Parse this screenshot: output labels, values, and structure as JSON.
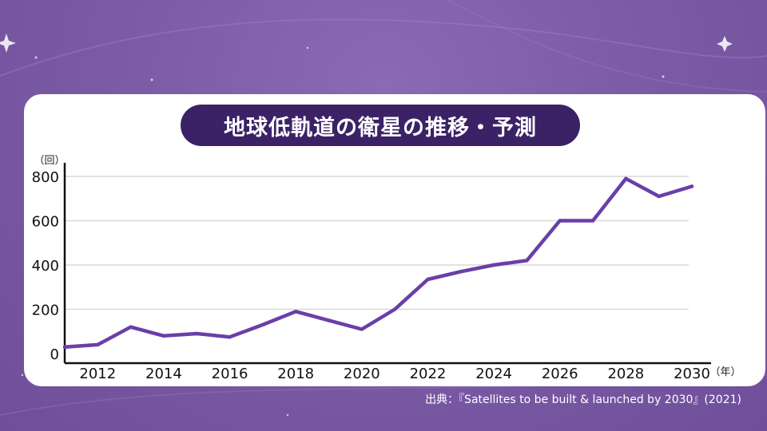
{
  "chart_data": {
    "type": "line",
    "title": "地球低軌道の衛星の推移・予測",
    "y_unit": "（回）",
    "x_unit": "（年）",
    "ylim": [
      0,
      800
    ],
    "xlim": [
      2011,
      2030
    ],
    "yticks": [
      0,
      200,
      400,
      600,
      800
    ],
    "xticks": [
      2012,
      2014,
      2016,
      2018,
      2020,
      2022,
      2024,
      2026,
      2028,
      2030
    ],
    "grid": true,
    "series_color": "#6a3fa8",
    "x": [
      2011,
      2012,
      2013,
      2014,
      2015,
      2016,
      2017,
      2018,
      2019,
      2020,
      2021,
      2022,
      2023,
      2024,
      2025,
      2026,
      2027,
      2028,
      2029,
      2030
    ],
    "values": [
      30,
      40,
      120,
      80,
      90,
      75,
      130,
      190,
      150,
      110,
      200,
      335,
      370,
      400,
      420,
      600,
      600,
      790,
      710,
      755
    ]
  },
  "source": "出典：『Satellites to be built & launched by 2030』(2021)"
}
